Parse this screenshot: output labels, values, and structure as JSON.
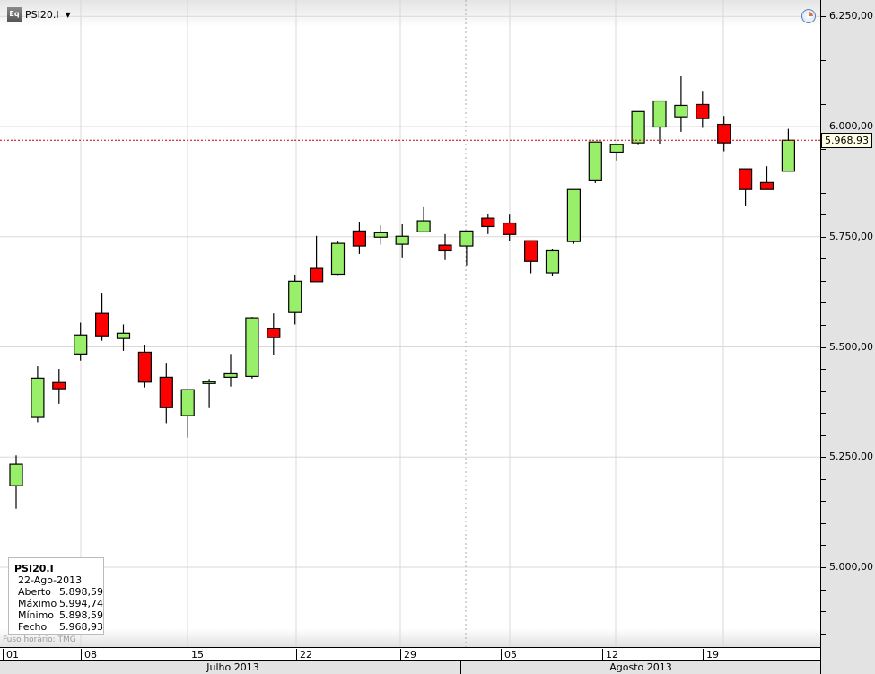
{
  "header": {
    "ticker": "PSI20.I",
    "ticker_icon": "equity-icon",
    "icon_text": "Eq",
    "settings_icon": "clock-icon"
  },
  "colors": {
    "up": "#99ee6a",
    "down": "#ff0000",
    "grid": "#d8d8d8",
    "last_price_line": "#cc0000"
  },
  "last_price": "5.968,93",
  "info_box": {
    "title": "PSI20.I",
    "date": "22-Ago-2013",
    "rows": [
      {
        "label": "Aberto",
        "value": "5.898,59"
      },
      {
        "label": "Máximo",
        "value": "5.994,74"
      },
      {
        "label": "Mínimo",
        "value": "5.898,59"
      },
      {
        "label": "Fecho",
        "value": "5.968,93"
      }
    ]
  },
  "timezone": "Fuso horário: TMG",
  "x_axis": {
    "days": [
      "01",
      "08",
      "15",
      "22",
      "29",
      "05",
      "12",
      "19"
    ],
    "months": [
      "Julho 2013",
      "Agosto 2013"
    ]
  },
  "chart_data": {
    "type": "candlestick",
    "title": "PSI20.I",
    "y_ticks": [
      "6.250,00",
      "6.000,00",
      "5.750,00",
      "5.500,00",
      "5.250,00",
      "5.000,00"
    ],
    "y_tick_values": [
      6250,
      6000,
      5750,
      5500,
      5250,
      5000
    ],
    "ylim": [
      4820,
      6295
    ],
    "grid": true,
    "candles": [
      [
        5185,
        5254,
        5133,
        5234
      ],
      [
        5340,
        5456,
        5329,
        5429
      ],
      [
        5419,
        5450,
        5371,
        5405
      ],
      [
        5484,
        5555,
        5469,
        5527
      ],
      [
        5576,
        5621,
        5514,
        5525
      ],
      [
        5519,
        5551,
        5491,
        5531
      ],
      [
        5488,
        5505,
        5408,
        5420
      ],
      [
        5431,
        5462,
        5327,
        5362
      ],
      [
        5344,
        5403,
        5294,
        5403
      ],
      [
        5417,
        5427,
        5361,
        5421
      ],
      [
        5431,
        5484,
        5410,
        5439
      ],
      [
        5433,
        5568,
        5428,
        5566
      ],
      [
        5541,
        5576,
        5481,
        5521
      ],
      [
        5578,
        5664,
        5551,
        5649
      ],
      [
        5678,
        5752,
        5648,
        5648
      ],
      [
        5665,
        5739,
        5663,
        5735
      ],
      [
        5763,
        5784,
        5711,
        5729
      ],
      [
        5749,
        5776,
        5732,
        5759
      ],
      [
        5733,
        5778,
        5703,
        5751
      ],
      [
        5761,
        5817,
        5761,
        5786
      ],
      [
        5731,
        5756,
        5697,
        5718
      ],
      [
        5729,
        5763,
        5685,
        5763
      ],
      [
        5792,
        5802,
        5756,
        5773
      ],
      [
        5781,
        5800,
        5740,
        5755
      ],
      [
        5741,
        5741,
        5667,
        5694
      ],
      [
        5668,
        5723,
        5660,
        5718
      ],
      [
        5739,
        5857,
        5734,
        5857
      ],
      [
        5877,
        5965,
        5872,
        5965
      ],
      [
        5942,
        5959,
        5923,
        5959
      ],
      [
        5963,
        6034,
        5958,
        6034
      ],
      [
        5999,
        6058,
        5960,
        6058
      ],
      [
        6022,
        6114,
        5988,
        6048
      ],
      [
        6050,
        6081,
        5997,
        6018
      ],
      [
        6005,
        6024,
        5944,
        5963
      ],
      [
        5904,
        5904,
        5819,
        5857
      ],
      [
        5873,
        5910,
        5857,
        5857
      ],
      [
        5898.59,
        5994.74,
        5898.59,
        5968.93
      ]
    ],
    "candle_format": [
      "open",
      "high",
      "low",
      "close"
    ],
    "last_value": 5968.93
  }
}
